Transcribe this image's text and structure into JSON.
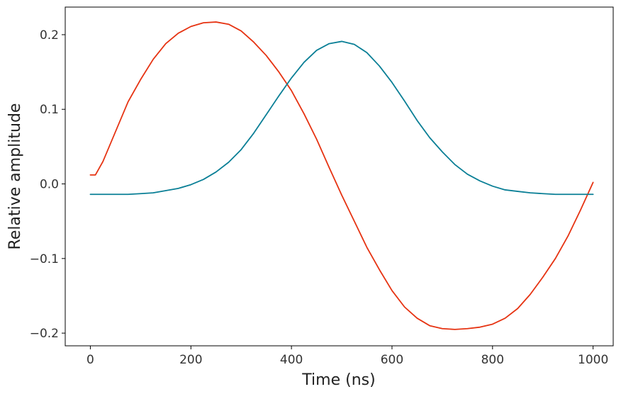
{
  "chart_data": {
    "type": "line",
    "title": "",
    "xlabel": "Time (ns)",
    "ylabel": "Relative amplitude",
    "xlim": [
      -50,
      1040
    ],
    "ylim": [
      -0.217,
      0.237
    ],
    "xticks": [
      0,
      200,
      400,
      600,
      800,
      1000
    ],
    "xtick_labels": [
      "0",
      "200",
      "400",
      "600",
      "800",
      "1000"
    ],
    "yticks": [
      -0.2,
      -0.1,
      0.0,
      0.1,
      0.2
    ],
    "ytick_labels": [
      "−0.2",
      "−0.1",
      "0.0",
      "0.1",
      "0.2"
    ],
    "grid": false,
    "series": [
      {
        "color": "#e63312",
        "x": [
          0,
          10,
          25,
          50,
          75,
          100,
          125,
          150,
          175,
          200,
          225,
          250,
          275,
          300,
          325,
          350,
          375,
          400,
          425,
          450,
          475,
          500,
          525,
          550,
          575,
          600,
          625,
          650,
          675,
          700,
          725,
          750,
          775,
          800,
          825,
          850,
          875,
          900,
          925,
          950,
          975,
          1000
        ],
        "y": [
          0.012,
          0.012,
          0.03,
          0.07,
          0.11,
          0.14,
          0.167,
          0.188,
          0.202,
          0.211,
          0.216,
          0.217,
          0.214,
          0.205,
          0.19,
          0.172,
          0.15,
          0.125,
          0.094,
          0.06,
          0.022,
          -0.015,
          -0.05,
          -0.085,
          -0.115,
          -0.143,
          -0.165,
          -0.18,
          -0.19,
          -0.194,
          -0.195,
          -0.194,
          -0.192,
          -0.188,
          -0.18,
          -0.167,
          -0.148,
          -0.125,
          -0.1,
          -0.07,
          -0.035,
          0.002
        ]
      },
      {
        "color": "#0a7f96",
        "x": [
          0,
          25,
          50,
          75,
          100,
          125,
          150,
          175,
          200,
          225,
          250,
          275,
          300,
          325,
          350,
          375,
          400,
          425,
          450,
          475,
          500,
          525,
          550,
          575,
          600,
          625,
          650,
          675,
          700,
          725,
          750,
          775,
          800,
          825,
          850,
          875,
          900,
          925,
          950,
          975,
          1000
        ],
        "y": [
          -0.014,
          -0.014,
          -0.014,
          -0.014,
          -0.013,
          -0.012,
          -0.009,
          -0.006,
          -0.001,
          0.006,
          0.016,
          0.029,
          0.046,
          0.068,
          0.093,
          0.118,
          0.142,
          0.163,
          0.179,
          0.188,
          0.191,
          0.187,
          0.176,
          0.158,
          0.136,
          0.111,
          0.085,
          0.062,
          0.043,
          0.026,
          0.013,
          0.004,
          -0.003,
          -0.008,
          -0.01,
          -0.012,
          -0.013,
          -0.014,
          -0.014,
          -0.014,
          -0.014
        ]
      }
    ]
  }
}
